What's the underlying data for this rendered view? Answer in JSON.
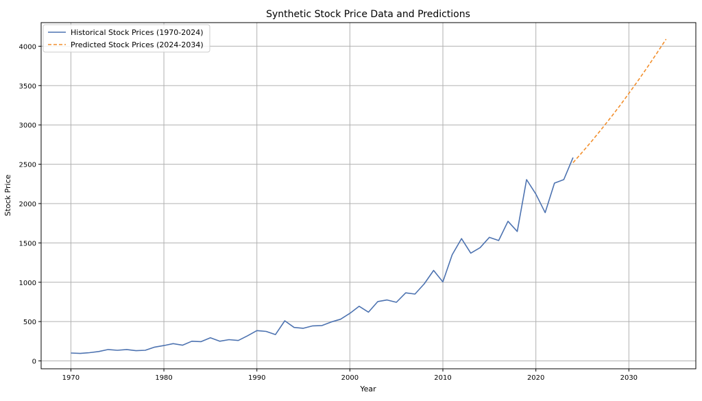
{
  "chart_data": {
    "type": "line",
    "title": "Synthetic Stock Price Data and Predictions",
    "xlabel": "Year",
    "ylabel": "Stock Price",
    "xlim": [
      1966.8,
      2037.2
    ],
    "ylim": [
      -100,
      4300
    ],
    "xticks": [
      1970,
      1980,
      1990,
      2000,
      2010,
      2020,
      2030
    ],
    "yticks": [
      0,
      500,
      1000,
      1500,
      2000,
      2500,
      3000,
      3500,
      4000
    ],
    "grid": true,
    "legend_position": "top-left",
    "series": [
      {
        "name": "Historical Stock Prices (1970-2024)",
        "color": "#4c72b0",
        "style": "solid",
        "x": [
          1970,
          1971,
          1972,
          1973,
          1974,
          1975,
          1976,
          1977,
          1978,
          1979,
          1980,
          1981,
          1982,
          1983,
          1984,
          1985,
          1986,
          1987,
          1988,
          1989,
          1990,
          1991,
          1992,
          1993,
          1994,
          1995,
          1996,
          1997,
          1998,
          1999,
          2000,
          2001,
          2002,
          2003,
          2004,
          2005,
          2006,
          2007,
          2008,
          2009,
          2010,
          2011,
          2012,
          2013,
          2014,
          2015,
          2016,
          2017,
          2018,
          2019,
          2020,
          2021,
          2022,
          2023,
          2024
        ],
        "y": [
          100,
          95,
          105,
          120,
          145,
          135,
          145,
          130,
          135,
          175,
          195,
          220,
          200,
          250,
          245,
          295,
          250,
          270,
          260,
          320,
          385,
          375,
          335,
          510,
          425,
          415,
          445,
          450,
          495,
          530,
          605,
          695,
          620,
          755,
          775,
          745,
          865,
          850,
          980,
          1150,
          1005,
          1350,
          1555,
          1370,
          1440,
          1570,
          1530,
          1775,
          1645,
          2305,
          2120,
          1885,
          2260,
          2305,
          2585
        ]
      },
      {
        "name": "Predicted Stock Prices (2024-2034)",
        "color": "#f28e2b",
        "style": "dashed",
        "x": [
          2024,
          2025,
          2026,
          2027,
          2028,
          2029,
          2030,
          2031,
          2032,
          2033,
          2034
        ],
        "y": [
          2520,
          2654,
          2793,
          2937,
          3086,
          3240,
          3400,
          3565,
          3735,
          3910,
          4090
        ]
      }
    ]
  }
}
